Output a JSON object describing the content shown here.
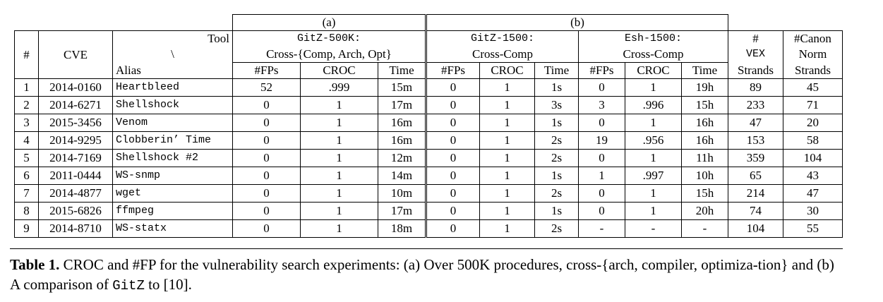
{
  "groups": {
    "a": "(a)",
    "b": "(b)"
  },
  "header": {
    "num": "#",
    "cve": "CVE",
    "tool": "Tool",
    "backslash": "\\",
    "alias": "Alias",
    "gitz500k_name": "GitZ-500K:",
    "gitz500k_desc": "Cross-{Comp, Arch, Opt}",
    "gitz1500_name": "GitZ-1500:",
    "gitz1500_desc": "Cross-Comp",
    "esh1500_name": "Esh-1500:",
    "esh1500_desc": "Cross-Comp",
    "vex_1": "#",
    "vex_2": "VEX",
    "vex_3": "Strands",
    "canon_1": "#Canon",
    "canon_2": "Norm",
    "canon_3": "Strands",
    "fps": "#FPs",
    "croc": "CROC",
    "time": "Time"
  },
  "rows": [
    {
      "n": "1",
      "cve": "2014-0160",
      "alias": "Heartbleed",
      "a_fp": "52",
      "a_croc": ".999",
      "a_time": "15m",
      "b_fp": "0",
      "b_croc": "1",
      "b_time": "1s",
      "e_fp": "0",
      "e_croc": "1",
      "e_time": "19h",
      "vex": "89",
      "canon": "45"
    },
    {
      "n": "2",
      "cve": "2014-6271",
      "alias": "Shellshock",
      "a_fp": "0",
      "a_croc": "1",
      "a_time": "17m",
      "b_fp": "0",
      "b_croc": "1",
      "b_time": "3s",
      "e_fp": "3",
      "e_croc": ".996",
      "e_time": "15h",
      "vex": "233",
      "canon": "71"
    },
    {
      "n": "3",
      "cve": "2015-3456",
      "alias": "Venom",
      "a_fp": "0",
      "a_croc": "1",
      "a_time": "16m",
      "b_fp": "0",
      "b_croc": "1",
      "b_time": "1s",
      "e_fp": "0",
      "e_croc": "1",
      "e_time": "16h",
      "vex": "47",
      "canon": "20"
    },
    {
      "n": "4",
      "cve": "2014-9295",
      "alias": "Clobberin’ Time",
      "a_fp": "0",
      "a_croc": "1",
      "a_time": "16m",
      "b_fp": "0",
      "b_croc": "1",
      "b_time": "2s",
      "e_fp": "19",
      "e_croc": ".956",
      "e_time": "16h",
      "vex": "153",
      "canon": "58"
    },
    {
      "n": "5",
      "cve": "2014-7169",
      "alias": "Shellshock #2",
      "a_fp": "0",
      "a_croc": "1",
      "a_time": "12m",
      "b_fp": "0",
      "b_croc": "1",
      "b_time": "2s",
      "e_fp": "0",
      "e_croc": "1",
      "e_time": "11h",
      "vex": "359",
      "canon": "104"
    },
    {
      "n": "6",
      "cve": "2011-0444",
      "alias": "WS-snmp",
      "a_fp": "0",
      "a_croc": "1",
      "a_time": "14m",
      "b_fp": "0",
      "b_croc": "1",
      "b_time": "1s",
      "e_fp": "1",
      "e_croc": ".997",
      "e_time": "10h",
      "vex": "65",
      "canon": "43"
    },
    {
      "n": "7",
      "cve": "2014-4877",
      "alias": "wget",
      "a_fp": "0",
      "a_croc": "1",
      "a_time": "10m",
      "b_fp": "0",
      "b_croc": "1",
      "b_time": "2s",
      "e_fp": "0",
      "e_croc": "1",
      "e_time": "15h",
      "vex": "214",
      "canon": "47"
    },
    {
      "n": "8",
      "cve": "2015-6826",
      "alias": "ffmpeg",
      "a_fp": "0",
      "a_croc": "1",
      "a_time": "17m",
      "b_fp": "0",
      "b_croc": "1",
      "b_time": "1s",
      "e_fp": "0",
      "e_croc": "1",
      "e_time": "20h",
      "vex": "74",
      "canon": "30"
    },
    {
      "n": "9",
      "cve": "2014-8710",
      "alias": "WS-statx",
      "a_fp": "0",
      "a_croc": "1",
      "a_time": "18m",
      "b_fp": "0",
      "b_croc": "1",
      "b_time": "2s",
      "e_fp": "-",
      "e_croc": "-",
      "e_time": "-",
      "vex": "104",
      "canon": "55"
    }
  ],
  "caption": {
    "label": "Table 1.",
    "text_1": "CROC and #FP for the vulnerability search experiments: (a) Over 500K procedures, cross-{arch, compiler, optimiza-tion} and (b) A comparison of ",
    "gitz": "GitZ",
    "text_2": " to [10]."
  }
}
